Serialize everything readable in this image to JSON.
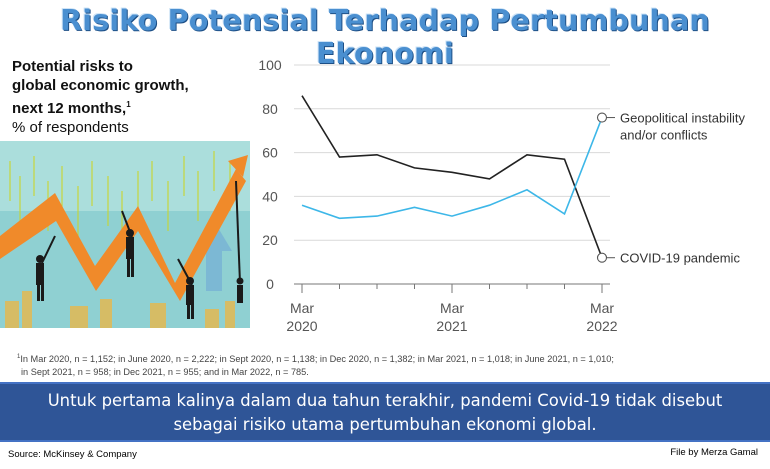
{
  "banner_title": "Risiko Potensial Terhadap Pertumbuhan Ekonomi",
  "subtitle": {
    "line1": "Potential risks to",
    "line2": "global economic growth,",
    "line3": "next 12 months,",
    "sup": "1",
    "line4": "% of respondents"
  },
  "chart_data": {
    "type": "line",
    "x": [
      "Mar 2020",
      "Jun 2020",
      "Sep 2020",
      "Dec 2020",
      "Mar 2021",
      "Jun 2021",
      "Sep 2021",
      "Dec 2021",
      "Mar 2022"
    ],
    "series": [
      {
        "name": "COVID-19 pandemic",
        "values": [
          86,
          58,
          59,
          53,
          51,
          48,
          59,
          57,
          12
        ],
        "color": "#222222"
      },
      {
        "name": "Geopolitical instability and/or conflicts",
        "values": [
          36,
          30,
          31,
          35,
          31,
          36,
          43,
          32,
          76
        ],
        "color": "#3db7e8"
      }
    ],
    "legend_labels": {
      "geo_line1": "Geopolitical instability",
      "geo_line2": "and/or conflicts",
      "covid": "COVID-19 pandemic"
    },
    "yticks": [
      "0",
      "20",
      "40",
      "60",
      "80",
      "100"
    ],
    "ylim": [
      0,
      100
    ],
    "xtick_labels": [
      {
        "month": "Mar",
        "year": "2020"
      },
      {
        "month": "Mar",
        "year": "2021"
      },
      {
        "month": "Mar",
        "year": "2022"
      }
    ],
    "grid": true,
    "legend": "right, at line ends"
  },
  "footnote": {
    "sup": "1",
    "line1": "In Mar 2020, n = 1,152; in June 2020, n = 2,222; in Sept 2020, n = 1,138; in Dec 2020, n = 1,382; in Mar 2021, n = 1,018; in June 2021, n = 1,010;",
    "line2": "in Sept 2021, n = 958; in Dec 2021, n = 955; and in Mar 2022, n = 785."
  },
  "message": {
    "line1": "Untuk pertama kalinya dalam dua tahun terakhir, pandemi Covid-19 tidak disebut",
    "line2": "sebagai risiko utama pertumbuhan ekonomi global."
  },
  "source": "Source: McKinsey & Company",
  "credit": "File by Merza Gamal",
  "colors": {
    "banner": "#4a8fd0",
    "message_bar": "#2f5597",
    "covid_line": "#222222",
    "geo_line": "#3db7e8"
  }
}
